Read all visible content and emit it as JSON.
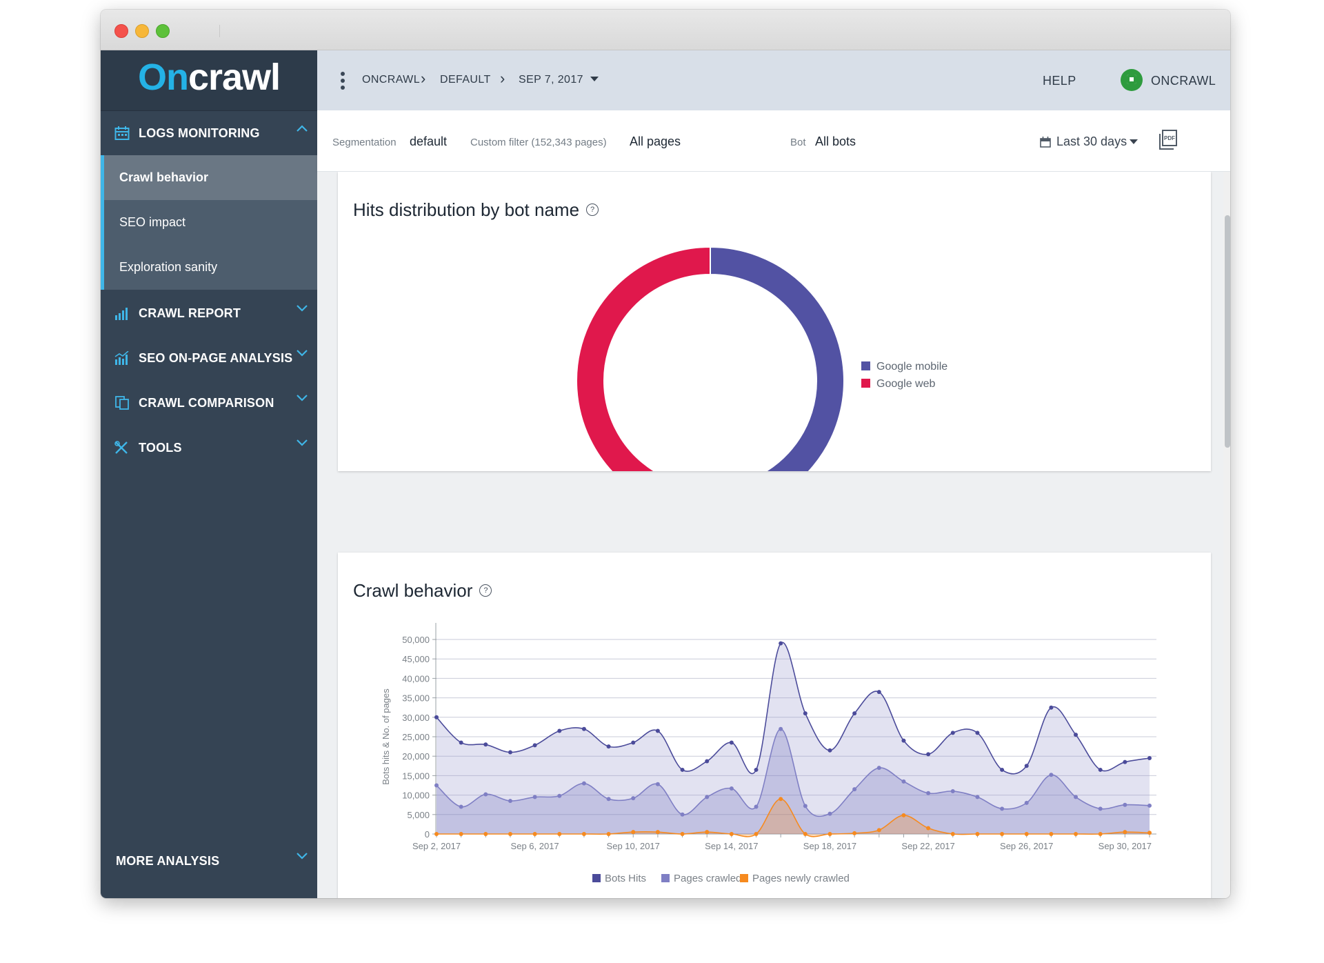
{
  "window": {
    "controls": [
      "close",
      "minimize",
      "zoom"
    ]
  },
  "sidebar": {
    "logo": {
      "part1": "On",
      "part2": "crawl"
    },
    "sections": [
      {
        "label": "LOGS MONITORING",
        "icon": "calendar-icon",
        "expanded": true
      },
      {
        "label": "CRAWL REPORT",
        "icon": "bar-chart-icon",
        "expanded": false
      },
      {
        "label": "SEO ON-PAGE ANALYSIS",
        "icon": "analysis-icon",
        "expanded": false
      },
      {
        "label": "CRAWL COMPARISON",
        "icon": "compare-icon",
        "expanded": false
      },
      {
        "label": "TOOLS",
        "icon": "tools-icon",
        "expanded": false
      }
    ],
    "items": [
      "Crawl behavior",
      "SEO impact",
      "Exploration sanity"
    ],
    "active_item": "Crawl behavior",
    "more": "MORE ANALYSIS"
  },
  "header": {
    "breadcrumb": [
      "ONCRAWL",
      "DEFAULT",
      "SEP 7, 2017"
    ],
    "help": "HELP",
    "user": "ONCRAWL"
  },
  "filters": {
    "segmentation_label": "Segmentation",
    "segmentation_value": "default",
    "custom_filter_label": "Custom filter (152,343 pages)",
    "custom_filter_value": "All pages",
    "bot_label": "Bot",
    "bot_value": "All bots",
    "date_range": "Last 30 days"
  },
  "colors": {
    "accent": "#3fb6e8",
    "google_mobile": "#5252a3",
    "google_web": "#e0184c",
    "bots_hits": "#4b4b9a",
    "pages_crawled": "#7f7fc4",
    "pages_newly_crawled": "#f68a1f"
  },
  "cards": {
    "donut_title": "Hits distribution by bot name",
    "crawl_title": "Crawl behavior"
  },
  "chart_data": [
    {
      "type": "pie",
      "title": "Hits distribution by bot name",
      "categories": [
        "Google mobile",
        "Google web"
      ],
      "values": [
        48,
        52
      ],
      "unit": "percent (estimated)",
      "legend": "right"
    },
    {
      "type": "area",
      "title": "Crawl behavior",
      "ylabel": "Bots hits & No. of pages",
      "ylim": [
        0,
        50000
      ],
      "yticks": [
        "0",
        "5,000",
        "10,000",
        "15,000",
        "20,000",
        "25,000",
        "30,000",
        "35,000",
        "40,000",
        "45,000",
        "50,000"
      ],
      "x": [
        "Sep 2, 2017",
        "Sep 3, 2017",
        "Sep 4, 2017",
        "Sep 5, 2017",
        "Sep 6, 2017",
        "Sep 7, 2017",
        "Sep 8, 2017",
        "Sep 9, 2017",
        "Sep 10, 2017",
        "Sep 11, 2017",
        "Sep 12, 2017",
        "Sep 13, 2017",
        "Sep 14, 2017",
        "Sep 15, 2017",
        "Sep 16, 2017",
        "Sep 17, 2017",
        "Sep 18, 2017",
        "Sep 19, 2017",
        "Sep 20, 2017",
        "Sep 21, 2017",
        "Sep 22, 2017",
        "Sep 23, 2017",
        "Sep 24, 2017",
        "Sep 25, 2017",
        "Sep 26, 2017",
        "Sep 27, 2017",
        "Sep 28, 2017",
        "Sep 29, 2017",
        "Sep 30, 2017",
        "Oct 1, 2017"
      ],
      "xtick_labels": [
        "Sep 2, 2017",
        "Sep 6, 2017",
        "Sep 10, 2017",
        "Sep 14, 2017",
        "Sep 18, 2017",
        "Sep 22, 2017",
        "Sep 26, 2017",
        "Sep 30, 2017"
      ],
      "series": [
        {
          "name": "Bots Hits",
          "values": [
            30000,
            23500,
            23000,
            21000,
            22800,
            26500,
            27000,
            22500,
            23500,
            26500,
            16500,
            18700,
            23500,
            16500,
            49000,
            31000,
            21500,
            31000,
            36500,
            24000,
            20500,
            26000,
            26000,
            16500,
            17500,
            32500,
            25500,
            16500,
            18500,
            19500
          ]
        },
        {
          "name": "Pages crawled",
          "values": [
            12500,
            7000,
            10200,
            8500,
            9500,
            9800,
            13000,
            9000,
            9200,
            12800,
            5000,
            9500,
            11700,
            7000,
            27000,
            7200,
            5200,
            11500,
            17000,
            13500,
            10500,
            11000,
            9500,
            6500,
            8000,
            15200,
            9500,
            6500,
            7500,
            7300
          ]
        },
        {
          "name": "Pages newly crawled",
          "values": [
            0,
            0,
            0,
            0,
            0,
            0,
            0,
            0,
            500,
            500,
            0,
            500,
            0,
            0,
            9000,
            0,
            0,
            200,
            1000,
            4800,
            1500,
            0,
            0,
            0,
            0,
            0,
            0,
            0,
            500,
            300
          ]
        }
      ],
      "legend": "bottom",
      "grid": true
    }
  ]
}
